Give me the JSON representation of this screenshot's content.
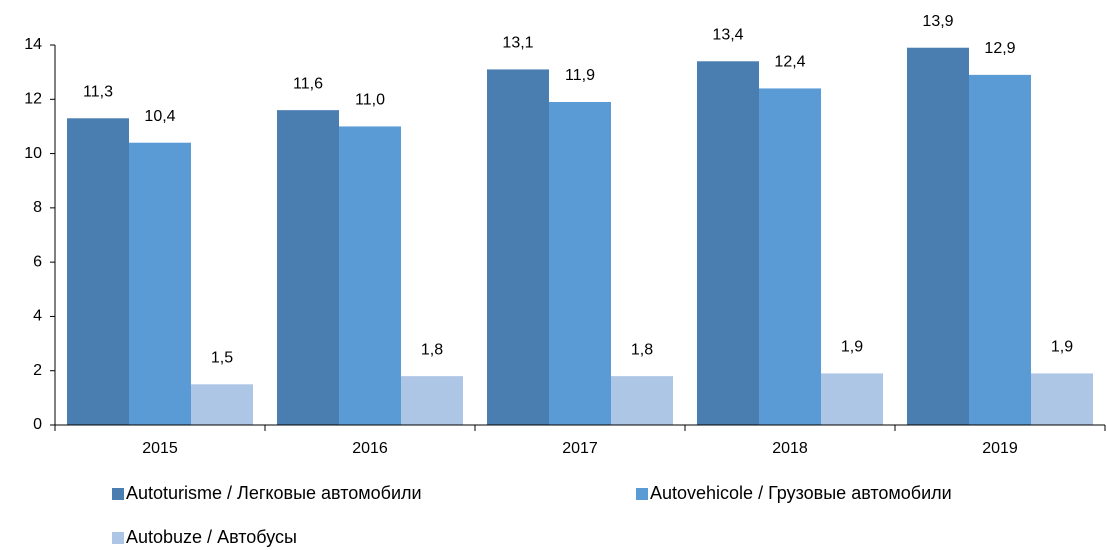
{
  "chart_data": {
    "type": "bar",
    "categories": [
      "2015",
      "2016",
      "2017",
      "2018",
      "2019"
    ],
    "series": [
      {
        "name": "Autoturisme / Легковые автомобили",
        "color": "#4a7eb0",
        "values": [
          11.3,
          11.6,
          13.1,
          13.4,
          13.9
        ],
        "value_labels": [
          "11,3",
          "11,6",
          "13,1",
          "13,4",
          "13,9"
        ]
      },
      {
        "name": "Autovehicole / Грузовые автомобили",
        "color": "#5b9bd5",
        "values": [
          10.4,
          11.0,
          11.9,
          12.4,
          12.9
        ],
        "value_labels": [
          "10,4",
          "11,0",
          "11,9",
          "12,4",
          "12,9"
        ]
      },
      {
        "name": "Autobuze / Автобусы",
        "color": "#aec6e6",
        "values": [
          1.5,
          1.8,
          1.8,
          1.9,
          1.9
        ],
        "value_labels": [
          "1,5",
          "1,8",
          "1,8",
          "1,9",
          "1,9"
        ]
      }
    ],
    "ylim": [
      0,
      14
    ],
    "yticks": [
      0,
      2,
      4,
      6,
      8,
      10,
      12,
      14
    ],
    "grid": false,
    "legend": "bottom"
  }
}
